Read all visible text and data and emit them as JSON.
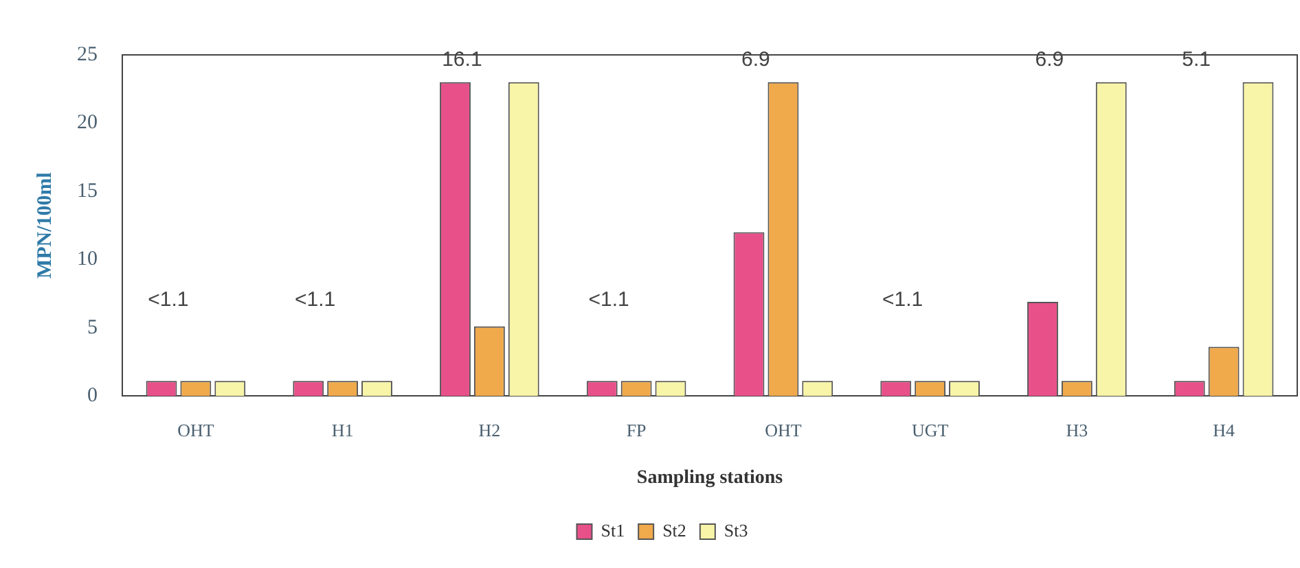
{
  "chart_data": {
    "type": "bar",
    "xlabel": "Sampling stations",
    "ylabel": "MPN/100ml",
    "categories": [
      "OHT",
      "H1",
      "H2",
      "FP",
      "OHT",
      "UGT",
      "H3",
      "H4"
    ],
    "series": [
      {
        "name": "St1",
        "color": "#e8508a",
        "values": [
          1.1,
          1.1,
          23,
          1.1,
          12,
          1.1,
          6.9,
          1.1
        ]
      },
      {
        "name": "St2",
        "color": "#f0aa4c",
        "values": [
          1.1,
          1.1,
          5.1,
          1.1,
          23,
          1.1,
          1.1,
          3.6
        ]
      },
      {
        "name": "St3",
        "color": "#f8f4a8",
        "values": [
          1.1,
          1.1,
          23,
          1.1,
          1.1,
          1.1,
          23,
          23
        ]
      }
    ],
    "ylim": [
      0,
      25
    ],
    "yticks": [
      0,
      5,
      10,
      15,
      20,
      25
    ],
    "grid": false,
    "legend": "bottom",
    "annotations": [
      "<1.1",
      "<1.1",
      "16.1",
      "<1.1",
      "6.9",
      "<1.1",
      "6.9",
      "5.1"
    ]
  }
}
